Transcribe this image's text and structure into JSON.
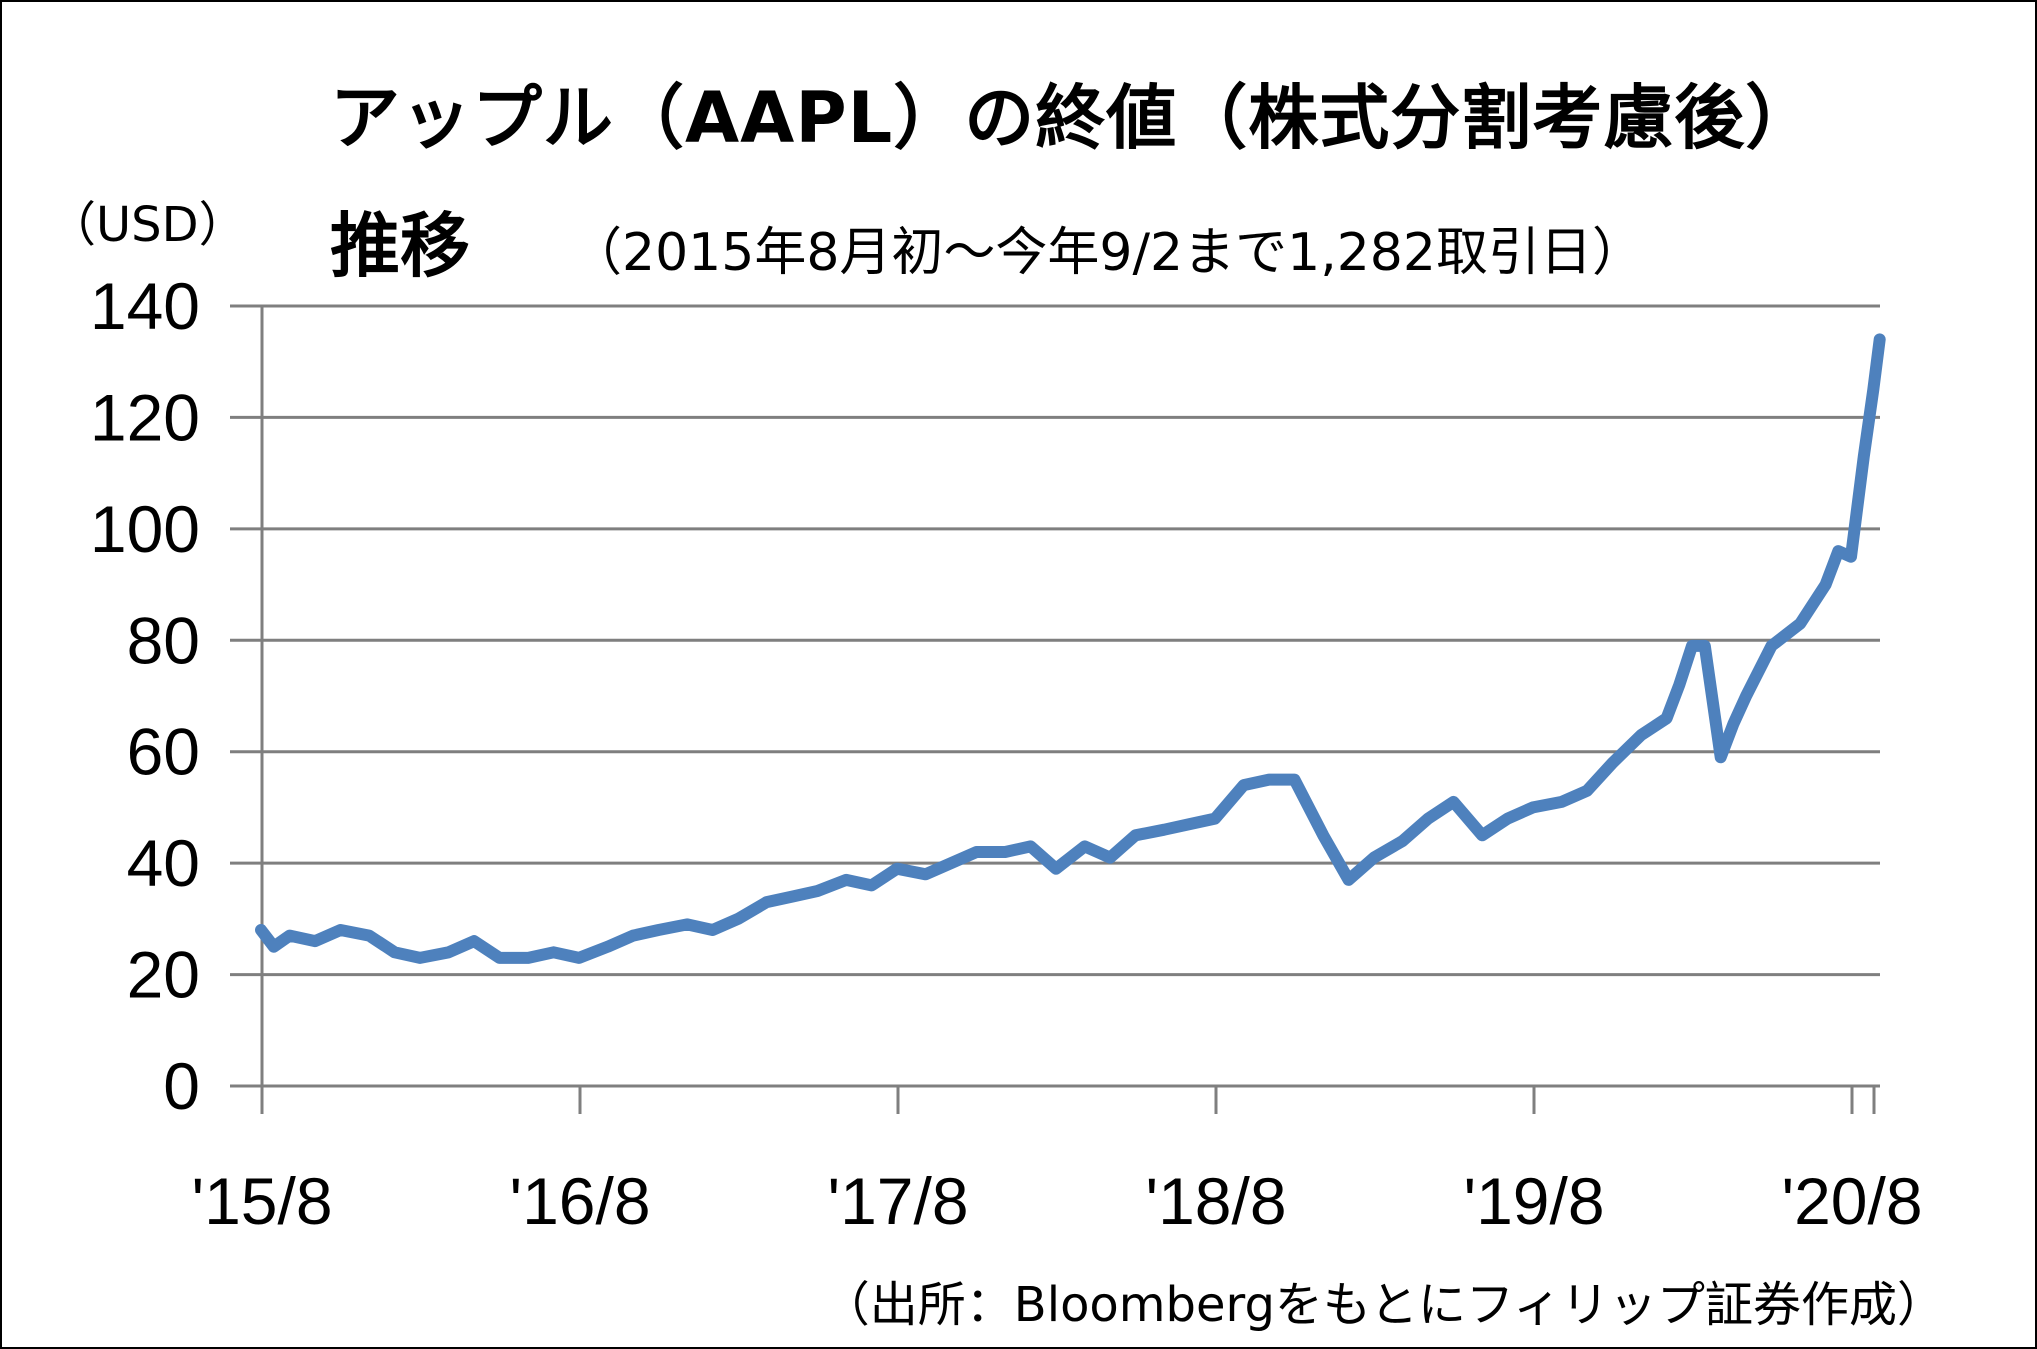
{
  "chart_data": {
    "type": "line",
    "title": "アップル（AAPL）の終値（株式分割考慮後）",
    "title_line2": "推移",
    "subtitle": "（2015年8月初～今年9/2まで1,282取引日）",
    "ylabel": "（USD）",
    "source": "（出所：Bloombergをもとにフィリップ証券作成）",
    "ylim": [
      0,
      140
    ],
    "yticks": [
      "0",
      "20",
      "40",
      "60",
      "80",
      "100",
      "120",
      "140"
    ],
    "xticks": [
      "'15/8",
      "'16/8",
      "'17/8",
      "'18/8",
      "'19/8",
      "'20/8"
    ],
    "xlim": [
      2015.583,
      2020.67
    ],
    "grid": true,
    "color": "#4e81bd",
    "series": [
      {
        "x": [
          2015.58,
          2015.62,
          2015.67,
          2015.75,
          2015.83,
          2015.92,
          2016.0,
          2016.08,
          2016.17,
          2016.25,
          2016.33,
          2016.42,
          2016.5,
          2016.58,
          2016.67,
          2016.75,
          2016.83,
          2016.92,
          2017.0,
          2017.08,
          2017.17,
          2017.25,
          2017.33,
          2017.42,
          2017.5,
          2017.58,
          2017.67,
          2017.75,
          2017.83,
          2017.92,
          2018.0,
          2018.08,
          2018.17,
          2018.25,
          2018.33,
          2018.42,
          2018.5,
          2018.58,
          2018.67,
          2018.75,
          2018.83,
          2018.92,
          2019.0,
          2019.08,
          2019.17,
          2019.25,
          2019.33,
          2019.42,
          2019.5,
          2019.58,
          2019.67,
          2019.75,
          2019.83,
          2019.92,
          2020.0,
          2020.04,
          2020.08,
          2020.12,
          2020.17,
          2020.21,
          2020.25,
          2020.33,
          2020.42,
          2020.5,
          2020.54,
          2020.58,
          2020.62,
          2020.65,
          2020.67
        ],
        "y": [
          28,
          25,
          27,
          26,
          28,
          27,
          24,
          23,
          24,
          26,
          23,
          23,
          24,
          23,
          25,
          27,
          28,
          29,
          28,
          30,
          33,
          34,
          35,
          37,
          36,
          39,
          38,
          40,
          42,
          42,
          43,
          39,
          43,
          41,
          45,
          46,
          47,
          48,
          54,
          55,
          55,
          45,
          37,
          41,
          44,
          48,
          51,
          45,
          48,
          50,
          51,
          53,
          58,
          63,
          66,
          72,
          79,
          79,
          59,
          65,
          70,
          79,
          83,
          90,
          96,
          95,
          113,
          125,
          134
        ]
      }
    ]
  }
}
